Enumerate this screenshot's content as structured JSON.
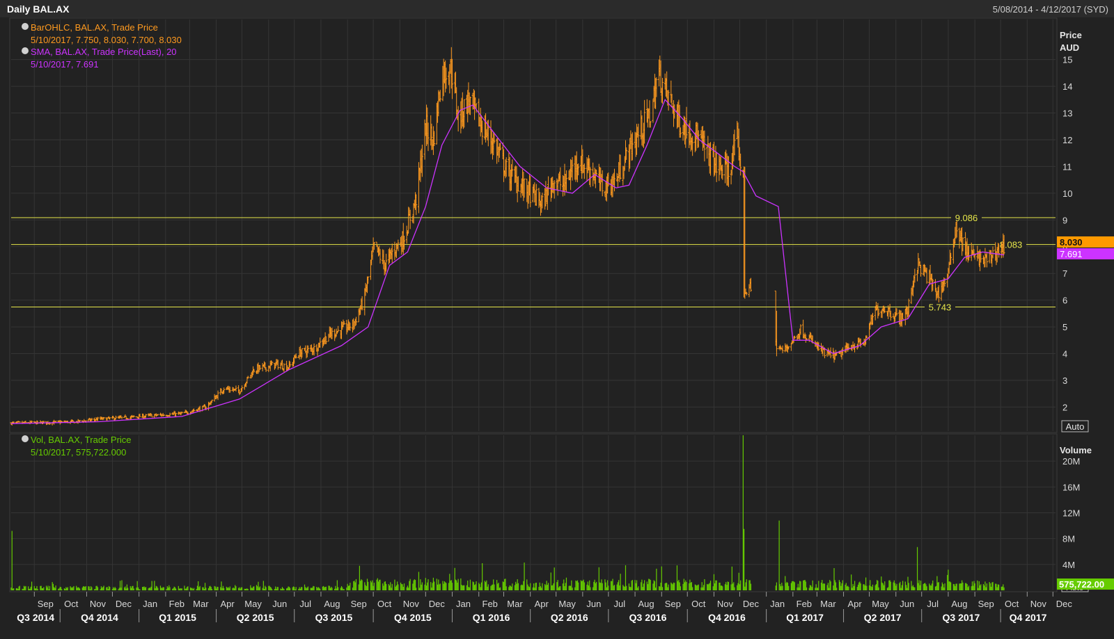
{
  "header": {
    "title": "Daily BAL.AX",
    "date_range": "5/08/2014 - 4/12/2017 (SYD)"
  },
  "colors": {
    "background": "#222222",
    "price_bar": "#ff9a1f",
    "sma": "#cc33ff",
    "volume": "#66cc00",
    "hline": "#e6e64a",
    "grid": "#353535",
    "axis_text": "#d9d9d9"
  },
  "legend": {
    "ohlc_title": "BarOHLC, BAL.AX, Trade Price",
    "ohlc_values": "5/10/2017, 7.750, 8.030, 7.700, 8.030",
    "sma_title": "SMA, BAL.AX, Trade Price(Last),  20",
    "sma_values": "5/10/2017, 7.691",
    "vol_title": "Vol, BAL.AX, Trade Price",
    "vol_values": "5/10/2017, 575,722.000"
  },
  "price_axis": {
    "title_line1": "Price",
    "title_line2": "AUD",
    "auto_label": "Auto",
    "last_price_tag": "8.030",
    "last_sma_tag": "7.691"
  },
  "volume_axis": {
    "title": "Volume",
    "auto_label": "Auto",
    "last_volume_tag": "575,722.00"
  },
  "chart_data": {
    "type": "line",
    "x_start": "2014-08-05",
    "x_end": "2017-12-04",
    "price_ylim": [
      1.1,
      16.5
    ],
    "price_ticks": [
      2,
      3,
      4,
      5,
      6,
      7,
      8,
      9,
      10,
      11,
      12,
      13,
      14,
      15
    ],
    "volume_ylim": [
      0,
      24000000
    ],
    "volume_ticks": [
      4000000,
      8000000,
      12000000,
      16000000,
      20000000
    ],
    "volume_tick_labels": [
      "4M",
      "8M",
      "12M",
      "16M",
      "20M"
    ],
    "horizontal_lines": [
      {
        "value": 9.086,
        "label": "9.086"
      },
      {
        "value": 8.083,
        "label": "8.083"
      },
      {
        "value": 5.743,
        "label": "5.743"
      }
    ],
    "month_ticks": [
      "Sep",
      "Oct",
      "Nov",
      "Dec",
      "Jan",
      "Feb",
      "Mar",
      "Apr",
      "May",
      "Jun",
      "Jul",
      "Aug",
      "Sep",
      "Oct",
      "Nov",
      "Dec",
      "Jan",
      "Feb",
      "Mar",
      "Apr",
      "May",
      "Jun",
      "Jul",
      "Aug",
      "Sep",
      "Oct",
      "Nov",
      "Dec",
      "Jan",
      "Feb",
      "Mar",
      "Apr",
      "May",
      "Jun",
      "Jul",
      "Aug",
      "Sep",
      "Oct",
      "Nov",
      "Dec"
    ],
    "quarter_labels": [
      "Q3 2014",
      "Q4 2014",
      "Q1 2015",
      "Q2 2015",
      "Q3 2015",
      "Q4 2015",
      "Q1 2016",
      "Q2 2016",
      "Q3 2016",
      "Q4 2016",
      "Q1 2017",
      "Q2 2017",
      "Q3 2017",
      "Q4 2017"
    ],
    "series": [
      {
        "kind": "price",
        "dates": [
          "2014-08-05",
          "2014-09-15",
          "2014-10-20",
          "2014-11-15",
          "2014-12-15",
          "2015-01-15",
          "2015-02-20",
          "2015-03-20",
          "2015-04-10",
          "2015-04-28",
          "2015-05-15",
          "2015-06-10",
          "2015-06-25",
          "2015-07-05",
          "2015-07-25",
          "2015-08-10",
          "2015-08-25",
          "2015-09-08",
          "2015-09-20",
          "2015-10-02",
          "2015-10-15",
          "2015-10-25",
          "2015-11-05",
          "2015-11-20",
          "2015-12-01",
          "2015-12-10",
          "2015-12-20",
          "2015-12-31",
          "2016-01-08",
          "2016-01-20",
          "2016-02-05",
          "2016-02-20",
          "2016-03-05",
          "2016-03-20",
          "2016-04-01",
          "2016-04-15",
          "2016-04-28",
          "2016-05-10",
          "2016-05-25",
          "2016-06-10",
          "2016-06-25",
          "2016-07-10",
          "2016-07-25",
          "2016-08-08",
          "2016-08-20",
          "2016-08-28",
          "2016-09-10",
          "2016-09-25",
          "2016-10-10",
          "2016-10-25",
          "2016-11-05",
          "2016-11-18",
          "2016-11-28",
          "2016-12-05",
          "2016-12-06",
          "2016-12-12",
          "2017-01-13",
          "2017-01-20",
          "2017-01-30",
          "2017-02-10",
          "2017-02-25",
          "2017-03-10",
          "2017-03-25",
          "2017-04-10",
          "2017-04-25",
          "2017-05-08",
          "2017-05-20",
          "2017-06-05",
          "2017-06-15",
          "2017-06-25",
          "2017-07-10",
          "2017-07-20",
          "2017-08-01",
          "2017-08-10",
          "2017-08-20",
          "2017-09-01",
          "2017-09-15",
          "2017-09-25",
          "2017-10-05"
        ],
        "close": [
          1.4,
          1.42,
          1.45,
          1.55,
          1.6,
          1.68,
          1.75,
          2.0,
          2.7,
          2.6,
          3.4,
          3.6,
          3.5,
          4.0,
          4.2,
          4.7,
          4.9,
          5.1,
          6.0,
          8.0,
          7.3,
          7.9,
          8.3,
          9.8,
          12.5,
          12.0,
          14.5,
          14.7,
          12.8,
          13.5,
          12.5,
          11.8,
          10.8,
          10.3,
          10.0,
          9.6,
          10.5,
          10.3,
          11.2,
          10.9,
          10.2,
          10.5,
          11.6,
          12.4,
          13.0,
          14.5,
          13.5,
          12.5,
          12.2,
          11.5,
          11.0,
          10.8,
          12.0,
          10.5,
          6.3,
          6.5,
          4.3,
          4.1,
          4.4,
          4.9,
          4.4,
          4.0,
          3.9,
          4.3,
          4.4,
          5.6,
          5.7,
          5.3,
          5.6,
          7.4,
          6.8,
          6.2,
          7.0,
          8.8,
          7.9,
          7.6,
          7.5,
          7.8,
          8.03
        ]
      },
      {
        "kind": "sma_20",
        "dates": [
          "2014-08-05",
          "2014-11-15",
          "2015-02-20",
          "2015-04-28",
          "2015-06-25",
          "2015-08-25",
          "2015-09-25",
          "2015-10-20",
          "2015-11-10",
          "2015-12-01",
          "2015-12-20",
          "2016-01-10",
          "2016-01-25",
          "2016-02-20",
          "2016-03-20",
          "2016-04-20",
          "2016-05-20",
          "2016-06-15",
          "2016-07-10",
          "2016-07-25",
          "2016-08-15",
          "2016-09-05",
          "2016-09-25",
          "2016-10-15",
          "2016-11-05",
          "2016-11-25",
          "2016-12-05",
          "2016-12-20",
          "2017-01-15",
          "2017-02-01",
          "2017-02-20",
          "2017-03-20",
          "2017-04-20",
          "2017-05-15",
          "2017-06-15",
          "2017-07-10",
          "2017-08-01",
          "2017-08-20",
          "2017-09-10",
          "2017-10-05"
        ],
        "values": [
          1.38,
          1.45,
          1.65,
          2.3,
          3.4,
          4.3,
          5.0,
          7.3,
          7.8,
          9.5,
          11.8,
          13.1,
          13.3,
          12.2,
          11.0,
          10.2,
          10.0,
          10.7,
          10.2,
          10.3,
          11.8,
          13.5,
          12.8,
          12.0,
          11.5,
          11.0,
          10.8,
          9.9,
          9.5,
          4.5,
          4.5,
          4.0,
          4.3,
          5.0,
          5.3,
          6.6,
          6.8,
          7.6,
          7.8,
          7.69
        ]
      },
      {
        "kind": "volume",
        "spikes": [
          {
            "date": "2014-08-06",
            "value": 9200000
          },
          {
            "date": "2015-09-15",
            "value": 3800000
          },
          {
            "date": "2016-02-05",
            "value": 4200000
          },
          {
            "date": "2016-03-25",
            "value": 4300000
          },
          {
            "date": "2016-09-01",
            "value": 3700000
          },
          {
            "date": "2016-12-05",
            "value": 24000000
          },
          {
            "date": "2016-12-06",
            "value": 9500000
          },
          {
            "date": "2017-01-16",
            "value": 10800000
          },
          {
            "date": "2017-06-26",
            "value": 6700000
          },
          {
            "date": "2017-08-01",
            "value": 3200000
          }
        ],
        "last": 575722
      }
    ]
  }
}
